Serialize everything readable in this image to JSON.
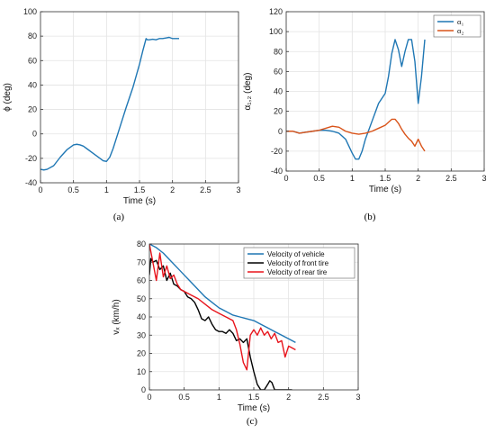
{
  "chart_data": [
    {
      "id": "a",
      "type": "line",
      "caption": "(a)",
      "xlabel": "Time (s)",
      "ylabel": "ϕ (deg)",
      "xlim": [
        0,
        3
      ],
      "ylim": [
        -40,
        100
      ],
      "xticks": [
        0,
        0.5,
        1,
        1.5,
        2,
        2.5,
        3
      ],
      "yticks": [
        -40,
        -20,
        0,
        20,
        40,
        60,
        80,
        100
      ],
      "grid": true,
      "legend": null,
      "series": [
        {
          "name": "",
          "color": "#1f77b4",
          "x": [
            0,
            0.05,
            0.1,
            0.2,
            0.3,
            0.4,
            0.5,
            0.55,
            0.6,
            0.65,
            0.7,
            0.8,
            0.9,
            0.95,
            1.0,
            1.05,
            1.1,
            1.2,
            1.3,
            1.4,
            1.5,
            1.55,
            1.6,
            1.62,
            1.65,
            1.7,
            1.75,
            1.8,
            1.85,
            1.9,
            1.95,
            2.0,
            2.05,
            2.1
          ],
          "y": [
            -29,
            -29.5,
            -29,
            -26,
            -19,
            -13,
            -9,
            -8.5,
            -9,
            -10,
            -12,
            -16,
            -20,
            -22,
            -22.5,
            -19,
            -12,
            5,
            22,
            38,
            57,
            68,
            78,
            77,
            77,
            77.5,
            77,
            78,
            78,
            78.5,
            79,
            78,
            78,
            78
          ]
        }
      ]
    },
    {
      "id": "b",
      "type": "line",
      "caption": "(b)",
      "xlabel": "Time (s)",
      "ylabel": "α₁,₂ (deg)",
      "xlim": [
        0,
        3
      ],
      "ylim": [
        -40,
        120
      ],
      "xticks": [
        0,
        0.5,
        1,
        1.5,
        2,
        2.5,
        3
      ],
      "yticks": [
        -40,
        -20,
        0,
        20,
        40,
        60,
        80,
        100,
        120
      ],
      "grid": true,
      "legend": "top-right",
      "series": [
        {
          "name": "α₁",
          "color": "#1f77b4",
          "x": [
            0,
            0.1,
            0.2,
            0.3,
            0.4,
            0.5,
            0.6,
            0.7,
            0.8,
            0.9,
            1.0,
            1.05,
            1.1,
            1.15,
            1.2,
            1.3,
            1.4,
            1.5,
            1.55,
            1.6,
            1.65,
            1.7,
            1.75,
            1.8,
            1.85,
            1.9,
            1.95,
            2.0,
            2.05,
            2.1
          ],
          "y": [
            0,
            0,
            -2,
            -1,
            0,
            1,
            1,
            0,
            -2,
            -8,
            -22,
            -28,
            -28,
            -20,
            -8,
            10,
            28,
            38,
            55,
            78,
            92,
            82,
            65,
            80,
            92,
            92,
            70,
            28,
            55,
            92
          ]
        },
        {
          "name": "α₂",
          "color": "#d95319",
          "x": [
            0,
            0.1,
            0.2,
            0.3,
            0.4,
            0.5,
            0.6,
            0.7,
            0.8,
            0.9,
            1.0,
            1.1,
            1.2,
            1.3,
            1.4,
            1.5,
            1.55,
            1.6,
            1.65,
            1.7,
            1.75,
            1.8,
            1.85,
            1.9,
            1.95,
            2.0,
            2.05,
            2.1
          ],
          "y": [
            0,
            0,
            -2,
            -1,
            0,
            1,
            3,
            5,
            4,
            0,
            -2,
            -3,
            -2,
            0,
            3,
            6,
            9,
            12,
            12,
            8,
            2,
            -3,
            -7,
            -10,
            -15,
            -8,
            -15,
            -20
          ]
        }
      ]
    },
    {
      "id": "c",
      "type": "line",
      "caption": "(c)",
      "xlabel": "Time (s)",
      "ylabel": "vₓ (km/h)",
      "xlim": [
        0,
        3
      ],
      "ylim": [
        0,
        80
      ],
      "xticks": [
        0,
        0.5,
        1,
        1.5,
        2,
        2.5,
        3
      ],
      "yticks": [
        0,
        10,
        20,
        30,
        40,
        50,
        60,
        70,
        80
      ],
      "grid": true,
      "legend": "top-right",
      "series": [
        {
          "name": "Velocity of vehicle",
          "color": "#1f77b4",
          "x": [
            0,
            0.1,
            0.2,
            0.3,
            0.4,
            0.5,
            0.6,
            0.7,
            0.8,
            0.9,
            1.0,
            1.1,
            1.2,
            1.3,
            1.4,
            1.5,
            1.6,
            1.7,
            1.8,
            1.9,
            2.0,
            2.1
          ],
          "y": [
            80,
            78,
            75,
            71,
            67,
            63,
            59,
            55,
            51,
            48,
            45,
            43,
            41,
            40,
            39,
            38,
            36,
            34,
            32,
            30,
            28,
            26
          ]
        },
        {
          "name": "Velocity of front tire",
          "color": "#000000",
          "x": [
            0,
            0.02,
            0.05,
            0.1,
            0.15,
            0.2,
            0.25,
            0.3,
            0.35,
            0.4,
            0.45,
            0.5,
            0.55,
            0.6,
            0.65,
            0.7,
            0.75,
            0.8,
            0.85,
            0.9,
            0.95,
            1.0,
            1.05,
            1.1,
            1.15,
            1.2,
            1.25,
            1.3,
            1.35,
            1.4,
            1.45,
            1.5,
            1.55,
            1.6,
            1.65,
            1.7,
            1.73,
            1.76,
            1.8,
            1.85,
            1.9,
            1.95,
            2.0,
            2.05
          ],
          "y": [
            63,
            72,
            70,
            71,
            66,
            68,
            60,
            64,
            58,
            57,
            55,
            54,
            51,
            50,
            48,
            44,
            39,
            38,
            40,
            36,
            33,
            32,
            32,
            31,
            33,
            31,
            27,
            28,
            26,
            28,
            18,
            10,
            3,
            0,
            0,
            3,
            5,
            4,
            0,
            0,
            0,
            0,
            0,
            0
          ]
        },
        {
          "name": "Velocity of rear tire",
          "color": "#e8141c",
          "x": [
            0,
            0.05,
            0.1,
            0.15,
            0.2,
            0.25,
            0.3,
            0.35,
            0.4,
            0.45,
            0.5,
            0.6,
            0.7,
            0.8,
            0.9,
            1.0,
            1.1,
            1.2,
            1.25,
            1.3,
            1.35,
            1.4,
            1.45,
            1.5,
            1.55,
            1.6,
            1.65,
            1.7,
            1.75,
            1.8,
            1.85,
            1.9,
            1.95,
            2.0,
            2.05,
            2.1
          ],
          "y": [
            80,
            70,
            60,
            75,
            62,
            68,
            61,
            63,
            58,
            55,
            54,
            52,
            50,
            47,
            44,
            42,
            40,
            38,
            33,
            25,
            15,
            11,
            30,
            33,
            30,
            34,
            30,
            32,
            28,
            31,
            26,
            27,
            18,
            24,
            23,
            22
          ]
        }
      ]
    }
  ]
}
